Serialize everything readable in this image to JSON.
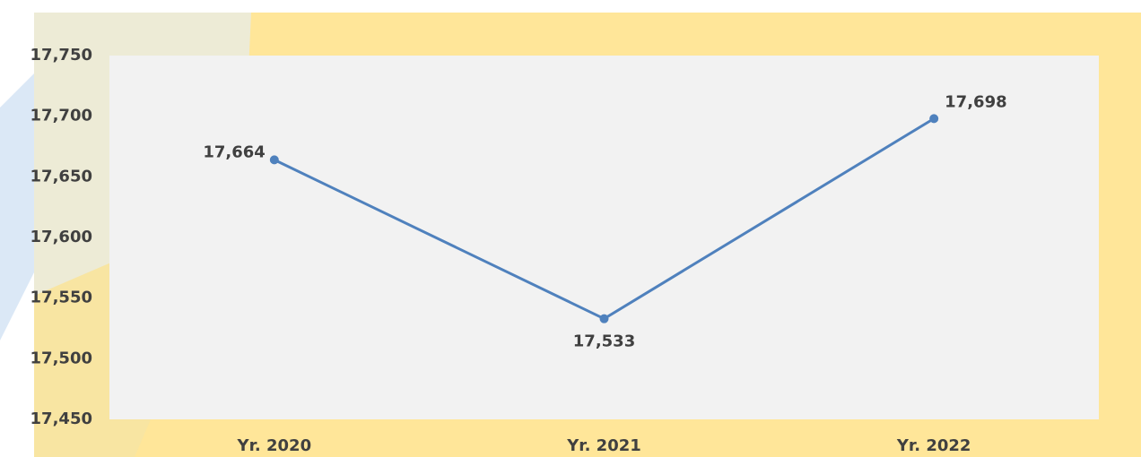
{
  "chart_data": {
    "type": "line",
    "categories": [
      "Yr. 2020",
      "Yr. 2021",
      "Yr. 2022"
    ],
    "series": [
      {
        "color": "#4f81bd",
        "values": [
          17664,
          17533,
          17698
        ],
        "value_labels": [
          "17,664",
          "17,533",
          "17,698"
        ]
      }
    ],
    "ylim": [
      17450,
      17750
    ],
    "yticks": [
      {
        "value": 17450,
        "label": "17,450"
      },
      {
        "value": 17500,
        "label": "17,500"
      },
      {
        "value": 17550,
        "label": "17,550"
      },
      {
        "value": 17600,
        "label": "17,600"
      },
      {
        "value": 17650,
        "label": "17,650"
      },
      {
        "value": 17700,
        "label": "17,700"
      },
      {
        "value": 17750,
        "label": "17,750"
      }
    ],
    "grid": false
  }
}
